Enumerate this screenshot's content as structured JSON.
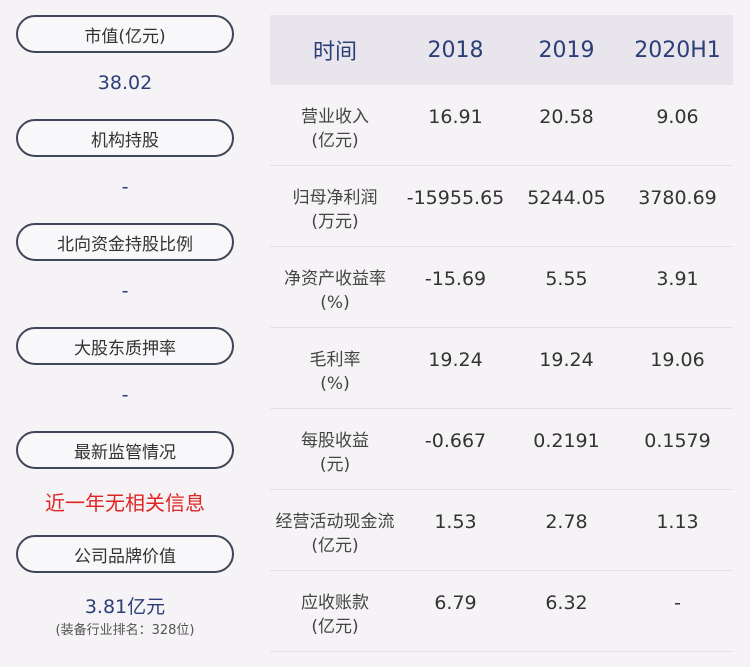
{
  "sidebar": {
    "market_cap_label": "市值(亿元)",
    "market_cap_value": "38.02",
    "institution_label": "机构持股",
    "institution_value": "-",
    "northbound_label": "北向资金持股比例",
    "northbound_value": "-",
    "pledge_label": "大股东质押率",
    "pledge_value": "-",
    "regulatory_label": "最新监管情况",
    "regulatory_value": "近一年无相关信息",
    "brand_label": "公司品牌价值",
    "brand_value": "3.81亿元",
    "brand_rank": "(装备行业排名：328位)"
  },
  "table": {
    "header": [
      "时间",
      "2018",
      "2019",
      "2020H1"
    ],
    "rows": [
      {
        "label": "营业收入",
        "unit": "(亿元)",
        "values": [
          "16.91",
          "20.58",
          "9.06"
        ]
      },
      {
        "label": "归母净利润",
        "unit": "(万元)",
        "values": [
          "-15955.65",
          "5244.05",
          "3780.69"
        ]
      },
      {
        "label": "净资产收益率",
        "unit": "(%)",
        "values": [
          "-15.69",
          "5.55",
          "3.91"
        ]
      },
      {
        "label": "毛利率",
        "unit": "(%)",
        "values": [
          "19.24",
          "19.24",
          "19.06"
        ]
      },
      {
        "label": "每股收益",
        "unit": "(元)",
        "values": [
          "-0.667",
          "0.2191",
          "0.1579"
        ]
      },
      {
        "label": "经营活动现金流",
        "unit": "(亿元)",
        "values": [
          "1.53",
          "2.78",
          "1.13"
        ]
      },
      {
        "label": "应收账款",
        "unit": "(亿元)",
        "values": [
          "6.79",
          "6.32",
          "-"
        ]
      }
    ]
  }
}
